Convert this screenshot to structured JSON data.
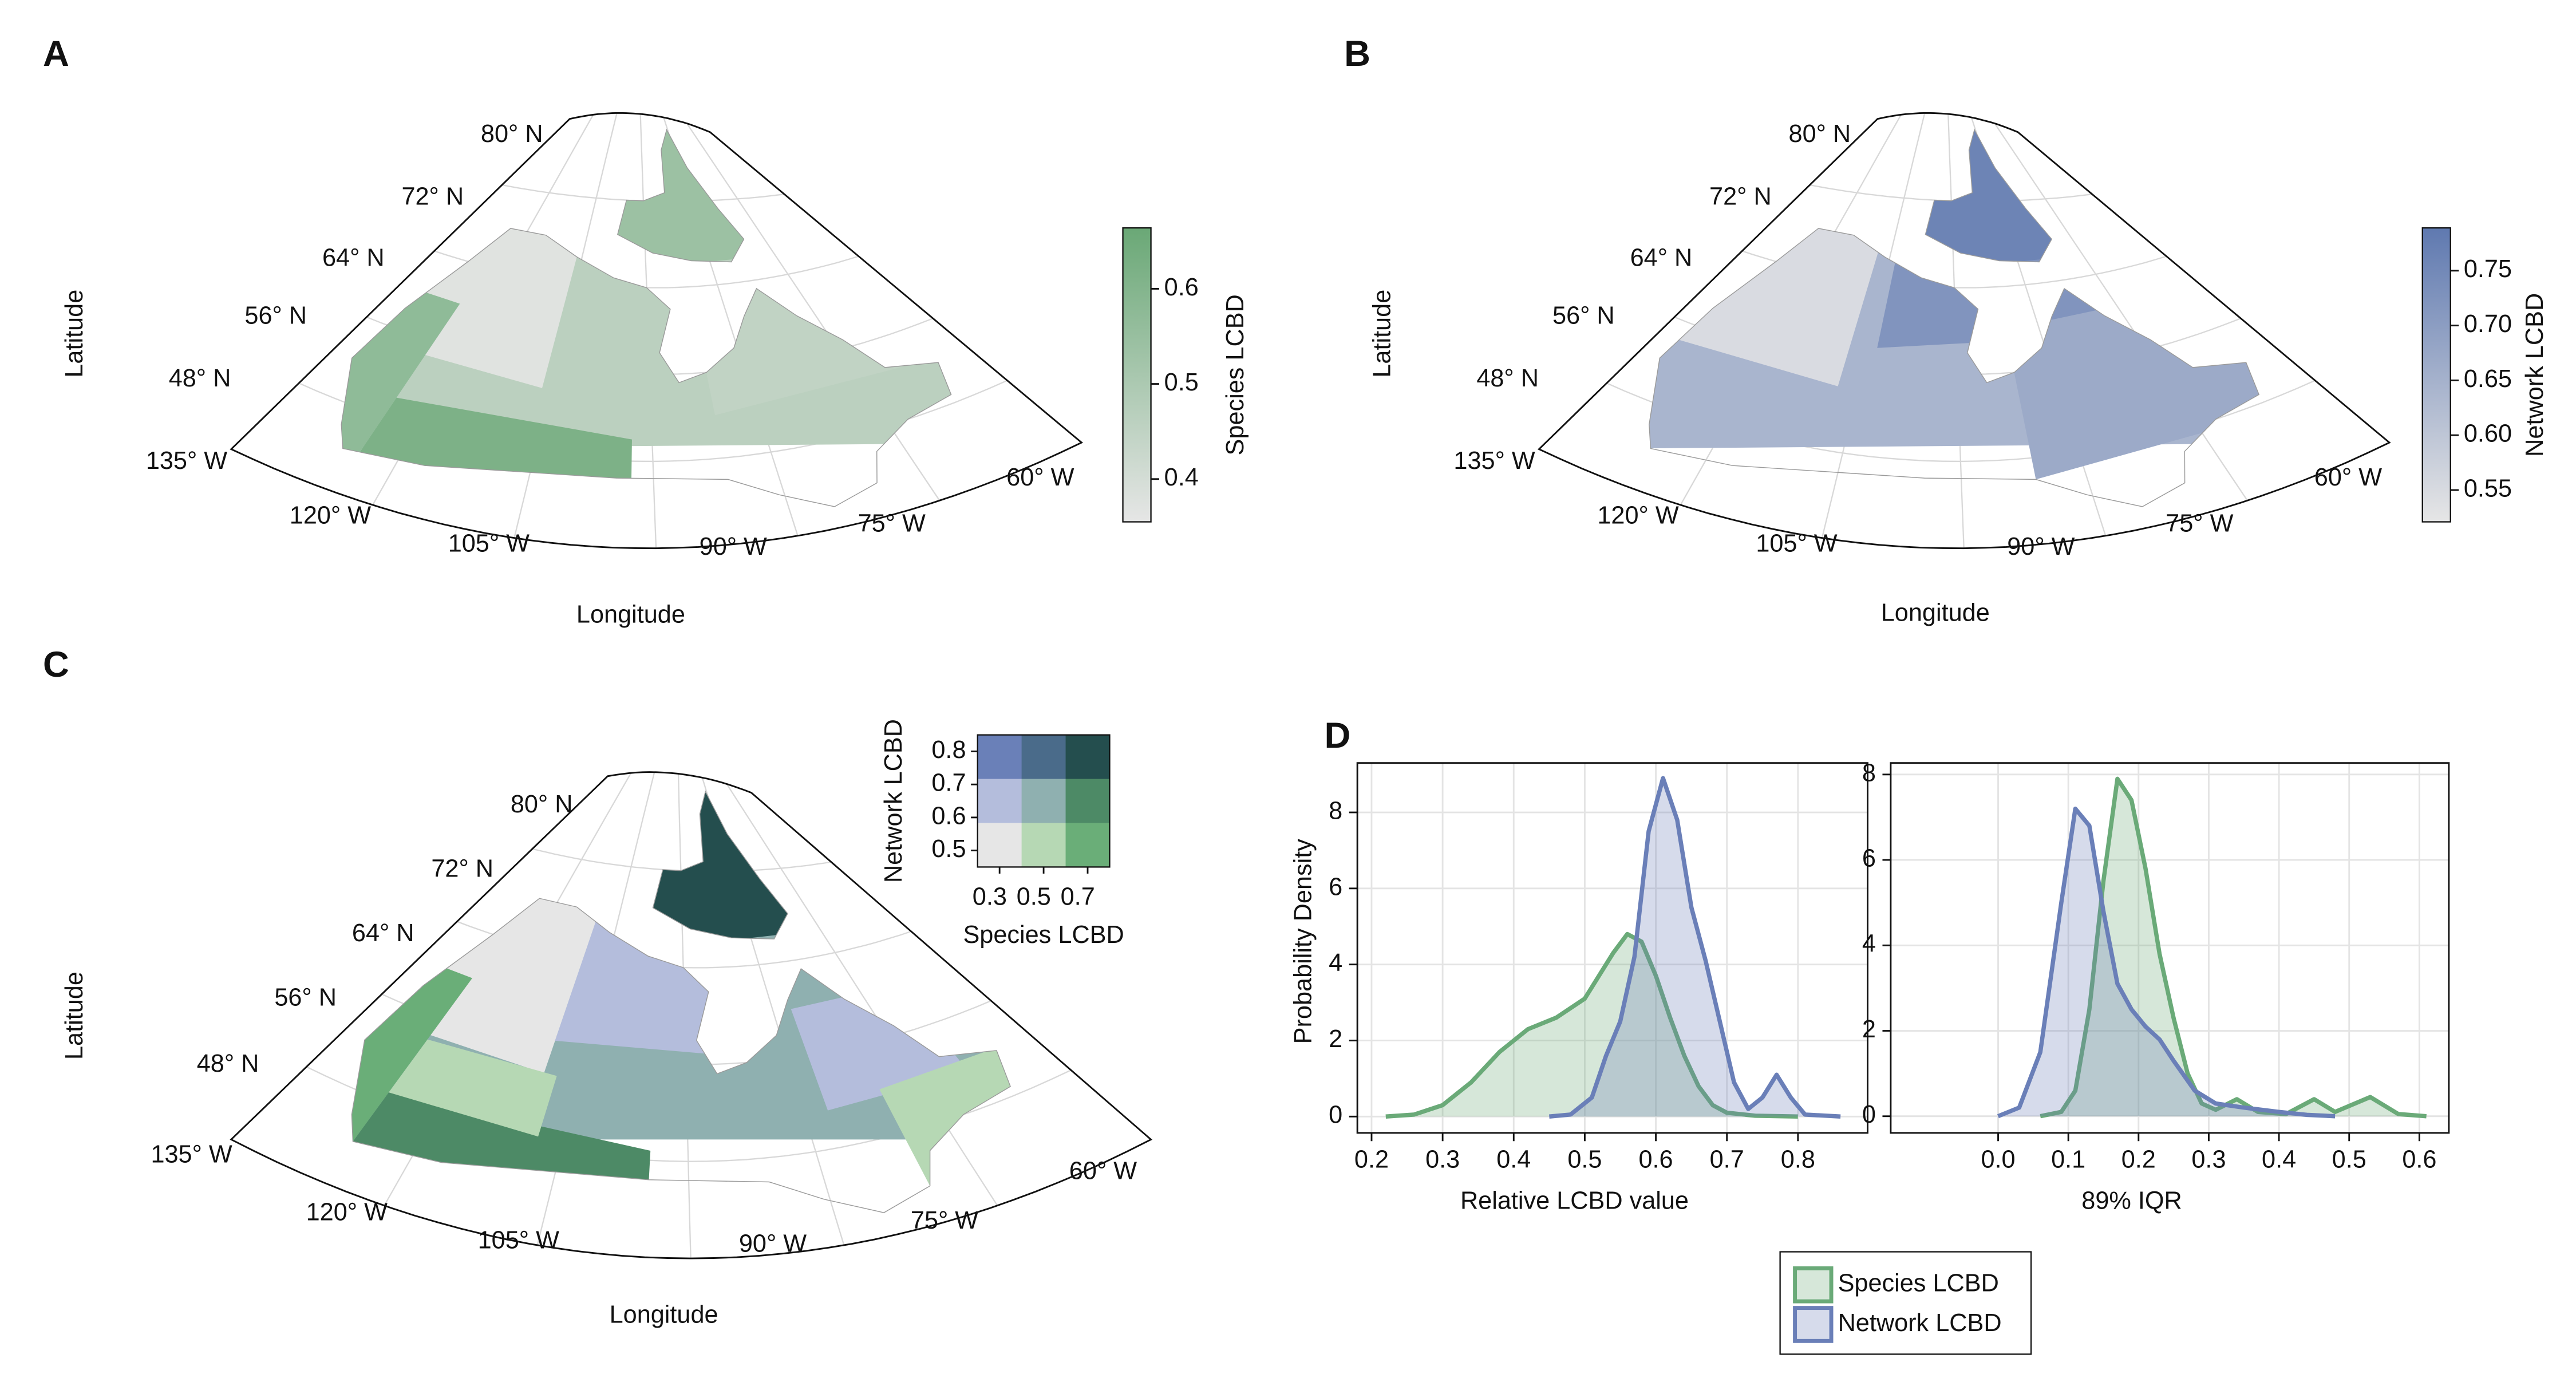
{
  "chart_data": [
    {
      "type": "map",
      "panel": "A",
      "xlabel": "Longitude",
      "ylabel": "Latitude",
      "lat_labels": [
        "80° N",
        "72° N",
        "64° N",
        "56° N",
        "48° N"
      ],
      "lon_labels": [
        "135° W",
        "120° W",
        "105° W",
        "90° W",
        "75° W",
        "60° W"
      ],
      "colorbar": {
        "label": "Species LCBD",
        "lim": [
          0.355,
          0.664
        ],
        "ticks": [
          0.4,
          0.5,
          0.6
        ],
        "colors": [
          "#e6e6e6",
          "#6aa876"
        ]
      }
    },
    {
      "type": "map",
      "panel": "B",
      "xlabel": "Longitude",
      "ylabel": "Latitude",
      "lat_labels": [
        "80° N",
        "72° N",
        "64° N",
        "56° N",
        "48° N"
      ],
      "lon_labels": [
        "135° W",
        "120° W",
        "105° W",
        "90° W",
        "75° W",
        "60° W"
      ],
      "colorbar": {
        "label": "Network LCBD",
        "lim": [
          0.521,
          0.789
        ],
        "ticks": [
          0.55,
          {
            "value": 0.6,
            "label": "0.60"
          },
          0.65,
          {
            "value": 0.7,
            "label": "0.70"
          },
          0.75
        ],
        "colors": [
          "#e6e6e6",
          "#5f79b0"
        ]
      }
    },
    {
      "type": "bivariate-map",
      "panel": "C",
      "xlabel": "Longitude",
      "ylabel": "Latitude",
      "lat_labels": [
        "80° N",
        "72° N",
        "64° N",
        "56° N",
        "48° N"
      ],
      "lon_labels": [
        "135° W",
        "120° W",
        "105° W",
        "90° W",
        "75° W",
        "60° W"
      ],
      "legend": {
        "xlabel": "Species LCBD",
        "ylabel": "Network LCBD",
        "xticks": [
          0.3,
          0.5,
          0.7
        ],
        "yticks": [
          0.5,
          0.6,
          0.7,
          0.8
        ],
        "colors": [
          [
            "#6a80b8",
            "#4a6b8a",
            "#244e4e"
          ],
          [
            "#b4bddc",
            "#8fb0b0",
            "#4d8a66"
          ],
          [
            "#e6e6e6",
            "#b6d8b4",
            "#6aae78"
          ]
        ]
      }
    },
    {
      "type": "density",
      "panel": "D",
      "xlabel": "Relative LCBD value",
      "ylabel": "Probability Density",
      "xlim": [
        0.18,
        0.898
      ],
      "ylim": [
        -0.43,
        9.3
      ],
      "xticks": [
        0.2,
        0.3,
        0.4,
        0.5,
        0.6,
        0.7,
        0.8
      ],
      "yticks": [
        0,
        2,
        4,
        6,
        8
      ],
      "grid": true,
      "series": [
        {
          "name": "Species LCBD",
          "color": "#6aaa78",
          "x": [
            0.22,
            0.26,
            0.3,
            0.34,
            0.38,
            0.42,
            0.46,
            0.5,
            0.54,
            0.56,
            0.58,
            0.6,
            0.62,
            0.64,
            0.66,
            0.68,
            0.7,
            0.74,
            0.8
          ],
          "values": [
            0,
            0.05,
            0.3,
            0.9,
            1.7,
            2.3,
            2.6,
            3.1,
            4.3,
            4.8,
            4.6,
            3.7,
            2.6,
            1.6,
            0.8,
            0.3,
            0.1,
            0.02,
            0
          ]
        },
        {
          "name": "Network LCBD",
          "color": "#6a7fb8",
          "x": [
            0.45,
            0.48,
            0.51,
            0.53,
            0.55,
            0.57,
            0.59,
            0.61,
            0.63,
            0.65,
            0.67,
            0.69,
            0.71,
            0.73,
            0.75,
            0.77,
            0.79,
            0.81,
            0.86
          ],
          "values": [
            0,
            0.05,
            0.5,
            1.6,
            2.5,
            4.2,
            7.5,
            8.9,
            7.8,
            5.5,
            4.1,
            2.5,
            0.9,
            0.2,
            0.5,
            1.1,
            0.5,
            0.05,
            0
          ]
        }
      ]
    },
    {
      "type": "density",
      "xlabel": "89% IQR",
      "xlim": [
        -0.153,
        0.642
      ],
      "ylim": [
        -0.39,
        8.27
      ],
      "xticks": [
        {
          "value": 0,
          "label": "0.0"
        },
        0.1,
        0.2,
        0.3,
        0.4,
        0.5,
        0.6
      ],
      "yticks": [
        0,
        2,
        4,
        6,
        8
      ],
      "grid": true,
      "series": [
        {
          "color": "#6aaa78",
          "x": [
            0.06,
            0.09,
            0.11,
            0.13,
            0.15,
            0.17,
            0.19,
            0.21,
            0.23,
            0.25,
            0.27,
            0.29,
            0.31,
            0.34,
            0.37,
            0.41,
            0.45,
            0.48,
            0.53,
            0.57,
            0.61
          ],
          "values": [
            0,
            0.1,
            0.6,
            2.5,
            5.5,
            7.9,
            7.4,
            5.8,
            3.8,
            2.3,
            1.0,
            0.3,
            0.15,
            0.4,
            0.1,
            0.05,
            0.4,
            0.1,
            0.45,
            0.05,
            0
          ]
        },
        {
          "color": "#6a7fb8",
          "x": [
            0,
            0.03,
            0.06,
            0.09,
            0.11,
            0.13,
            0.15,
            0.17,
            0.19,
            0.21,
            0.23,
            0.25,
            0.28,
            0.31,
            0.35,
            0.4,
            0.44,
            0.48
          ],
          "values": [
            0,
            0.2,
            1.5,
            5.0,
            7.2,
            6.8,
            4.8,
            3.1,
            2.5,
            2.1,
            1.8,
            1.3,
            0.6,
            0.3,
            0.2,
            0.1,
            0.03,
            0
          ]
        }
      ]
    }
  ]
}
